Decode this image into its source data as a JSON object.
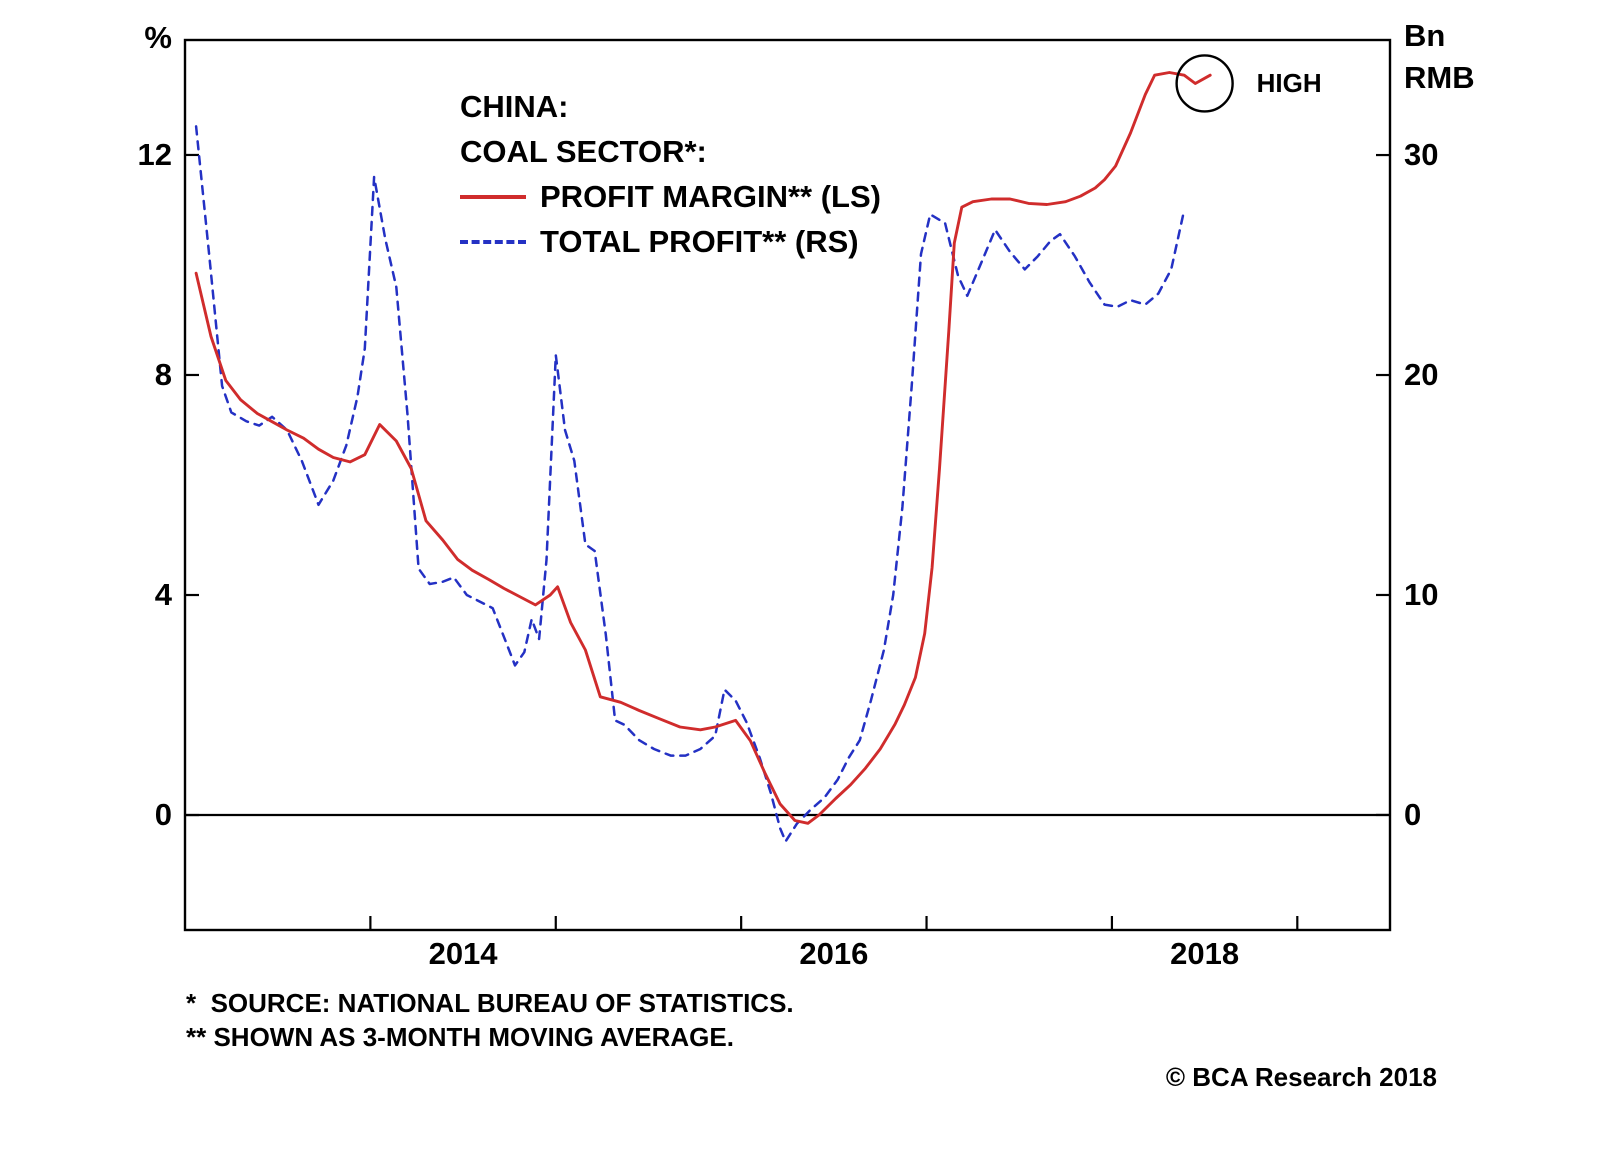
{
  "chart_data": {
    "type": "line",
    "title_lines": [
      "CHINA:",
      "COAL SECTOR*:"
    ],
    "left_axis": {
      "unit": "%",
      "ticks": [
        12,
        8,
        4,
        0
      ],
      "range": [
        -2.09,
        14.09
      ]
    },
    "right_axis": {
      "unit_lines": [
        "Bn",
        "RMB"
      ],
      "ticks": [
        30,
        20,
        10,
        0
      ],
      "range": [
        -5.23,
        35.23
      ]
    },
    "x_axis": {
      "tick_labels": [
        "2014",
        "2016",
        "2018"
      ],
      "label_positions": [
        2014,
        2016,
        2018
      ],
      "minor_ticks": [
        2013.5,
        2014.5,
        2015.5,
        2016.5,
        2017.5,
        2018.5
      ],
      "range": [
        2012.5,
        2019.0
      ]
    },
    "zero_line": 0,
    "legend_position": "top-center-inside",
    "grid": false,
    "series": [
      {
        "name": "PROFIT MARGIN** (LS)",
        "axis": "left",
        "color": "#d02c2c",
        "style": "solid",
        "points": [
          [
            2012.56,
            9.85
          ],
          [
            2012.64,
            8.7
          ],
          [
            2012.72,
            7.9
          ],
          [
            2012.8,
            7.55
          ],
          [
            2012.89,
            7.3
          ],
          [
            2012.97,
            7.15
          ],
          [
            2013.05,
            7.0
          ],
          [
            2013.14,
            6.85
          ],
          [
            2013.22,
            6.65
          ],
          [
            2013.3,
            6.5
          ],
          [
            2013.39,
            6.42
          ],
          [
            2013.47,
            6.55
          ],
          [
            2013.55,
            7.1
          ],
          [
            2013.64,
            6.8
          ],
          [
            2013.72,
            6.3
          ],
          [
            2013.8,
            5.35
          ],
          [
            2013.89,
            5.0
          ],
          [
            2013.97,
            4.65
          ],
          [
            2014.05,
            4.45
          ],
          [
            2014.14,
            4.28
          ],
          [
            2014.22,
            4.12
          ],
          [
            2014.3,
            3.98
          ],
          [
            2014.39,
            3.82
          ],
          [
            2014.47,
            4.0
          ],
          [
            2014.51,
            4.15
          ],
          [
            2014.58,
            3.5
          ],
          [
            2014.66,
            3.0
          ],
          [
            2014.74,
            2.15
          ],
          [
            2014.85,
            2.05
          ],
          [
            2014.95,
            1.9
          ],
          [
            2015.06,
            1.75
          ],
          [
            2015.17,
            1.6
          ],
          [
            2015.28,
            1.55
          ],
          [
            2015.36,
            1.6
          ],
          [
            2015.47,
            1.72
          ],
          [
            2015.55,
            1.35
          ],
          [
            2015.63,
            0.75
          ],
          [
            2015.71,
            0.2
          ],
          [
            2015.79,
            -0.1
          ],
          [
            2015.86,
            -0.15
          ],
          [
            2015.92,
            0.0
          ],
          [
            2016.01,
            0.3
          ],
          [
            2016.09,
            0.55
          ],
          [
            2016.17,
            0.85
          ],
          [
            2016.25,
            1.2
          ],
          [
            2016.33,
            1.65
          ],
          [
            2016.38,
            2.0
          ],
          [
            2016.44,
            2.5
          ],
          [
            2016.49,
            3.3
          ],
          [
            2016.53,
            4.5
          ],
          [
            2016.57,
            6.3
          ],
          [
            2016.62,
            8.8
          ],
          [
            2016.65,
            10.4
          ],
          [
            2016.69,
            11.05
          ],
          [
            2016.75,
            11.15
          ],
          [
            2016.85,
            11.2
          ],
          [
            2016.95,
            11.2
          ],
          [
            2017.05,
            11.12
          ],
          [
            2017.15,
            11.1
          ],
          [
            2017.25,
            11.15
          ],
          [
            2017.33,
            11.25
          ],
          [
            2017.41,
            11.4
          ],
          [
            2017.46,
            11.55
          ],
          [
            2017.52,
            11.8
          ],
          [
            2017.6,
            12.4
          ],
          [
            2017.68,
            13.1
          ],
          [
            2017.73,
            13.45
          ],
          [
            2017.81,
            13.5
          ],
          [
            2017.89,
            13.45
          ],
          [
            2017.95,
            13.3
          ],
          [
            2018.03,
            13.45
          ]
        ]
      },
      {
        "name": "TOTAL PROFIT** (RS)",
        "axis": "right",
        "color": "#2431c4",
        "style": "dashed",
        "points": [
          [
            2012.56,
            31.3
          ],
          [
            2012.63,
            25.5
          ],
          [
            2012.7,
            19.5
          ],
          [
            2012.75,
            18.3
          ],
          [
            2012.83,
            17.9
          ],
          [
            2012.9,
            17.7
          ],
          [
            2012.97,
            18.1
          ],
          [
            2013.05,
            17.5
          ],
          [
            2013.13,
            16.1
          ],
          [
            2013.22,
            14.1
          ],
          [
            2013.3,
            15.2
          ],
          [
            2013.37,
            16.8
          ],
          [
            2013.43,
            19.0
          ],
          [
            2013.47,
            21.2
          ],
          [
            2013.52,
            29.0
          ],
          [
            2013.58,
            26.2
          ],
          [
            2013.64,
            24.0
          ],
          [
            2013.7,
            18.2
          ],
          [
            2013.76,
            11.2
          ],
          [
            2013.82,
            10.5
          ],
          [
            2013.89,
            10.6
          ],
          [
            2013.95,
            10.8
          ],
          [
            2014.02,
            10.0
          ],
          [
            2014.09,
            9.7
          ],
          [
            2014.16,
            9.4
          ],
          [
            2014.22,
            8.1
          ],
          [
            2014.28,
            6.8
          ],
          [
            2014.33,
            7.4
          ],
          [
            2014.37,
            8.9
          ],
          [
            2014.41,
            8.0
          ],
          [
            2014.45,
            11.6
          ],
          [
            2014.5,
            20.9
          ],
          [
            2014.55,
            17.5
          ],
          [
            2014.6,
            16.1
          ],
          [
            2014.66,
            12.3
          ],
          [
            2014.71,
            12.0
          ],
          [
            2014.77,
            8.2
          ],
          [
            2014.82,
            4.3
          ],
          [
            2014.87,
            4.1
          ],
          [
            2014.95,
            3.4
          ],
          [
            2015.03,
            3.0
          ],
          [
            2015.12,
            2.7
          ],
          [
            2015.2,
            2.7
          ],
          [
            2015.28,
            3.0
          ],
          [
            2015.36,
            3.6
          ],
          [
            2015.41,
            5.7
          ],
          [
            2015.47,
            5.2
          ],
          [
            2015.53,
            4.2
          ],
          [
            2015.6,
            2.6
          ],
          [
            2015.66,
            1.0
          ],
          [
            2015.71,
            -0.6
          ],
          [
            2015.74,
            -1.2
          ],
          [
            2015.8,
            -0.4
          ],
          [
            2015.87,
            0.2
          ],
          [
            2015.95,
            0.8
          ],
          [
            2016.02,
            1.6
          ],
          [
            2016.08,
            2.6
          ],
          [
            2016.14,
            3.4
          ],
          [
            2016.2,
            5.2
          ],
          [
            2016.27,
            7.5
          ],
          [
            2016.32,
            10.0
          ],
          [
            2016.37,
            14.0
          ],
          [
            2016.42,
            19.5
          ],
          [
            2016.47,
            25.5
          ],
          [
            2016.52,
            27.3
          ],
          [
            2016.6,
            26.9
          ],
          [
            2016.67,
            24.5
          ],
          [
            2016.72,
            23.6
          ],
          [
            2016.8,
            25.2
          ],
          [
            2016.87,
            26.6
          ],
          [
            2016.95,
            25.6
          ],
          [
            2017.03,
            24.8
          ],
          [
            2017.1,
            25.4
          ],
          [
            2017.17,
            26.1
          ],
          [
            2017.22,
            26.4
          ],
          [
            2017.3,
            25.4
          ],
          [
            2017.38,
            24.2
          ],
          [
            2017.46,
            23.2
          ],
          [
            2017.53,
            23.1
          ],
          [
            2017.6,
            23.4
          ],
          [
            2017.68,
            23.2
          ],
          [
            2017.75,
            23.7
          ],
          [
            2017.82,
            24.8
          ],
          [
            2017.89,
            27.5
          ]
        ]
      }
    ],
    "annotations": [
      {
        "type": "circled-point",
        "label": "HIGH",
        "x": 2018.0,
        "y": 13.3,
        "axis": "left"
      }
    ]
  },
  "footnotes": {
    "line1": "*  SOURCE: NATIONAL BUREAU OF STATISTICS.",
    "line2": "** SHOWN AS 3-MONTH MOVING AVERAGE."
  },
  "copyright": "© BCA Research 2018",
  "colors": {
    "axis": "#000000",
    "background": "#ffffff",
    "text": "#000000"
  }
}
